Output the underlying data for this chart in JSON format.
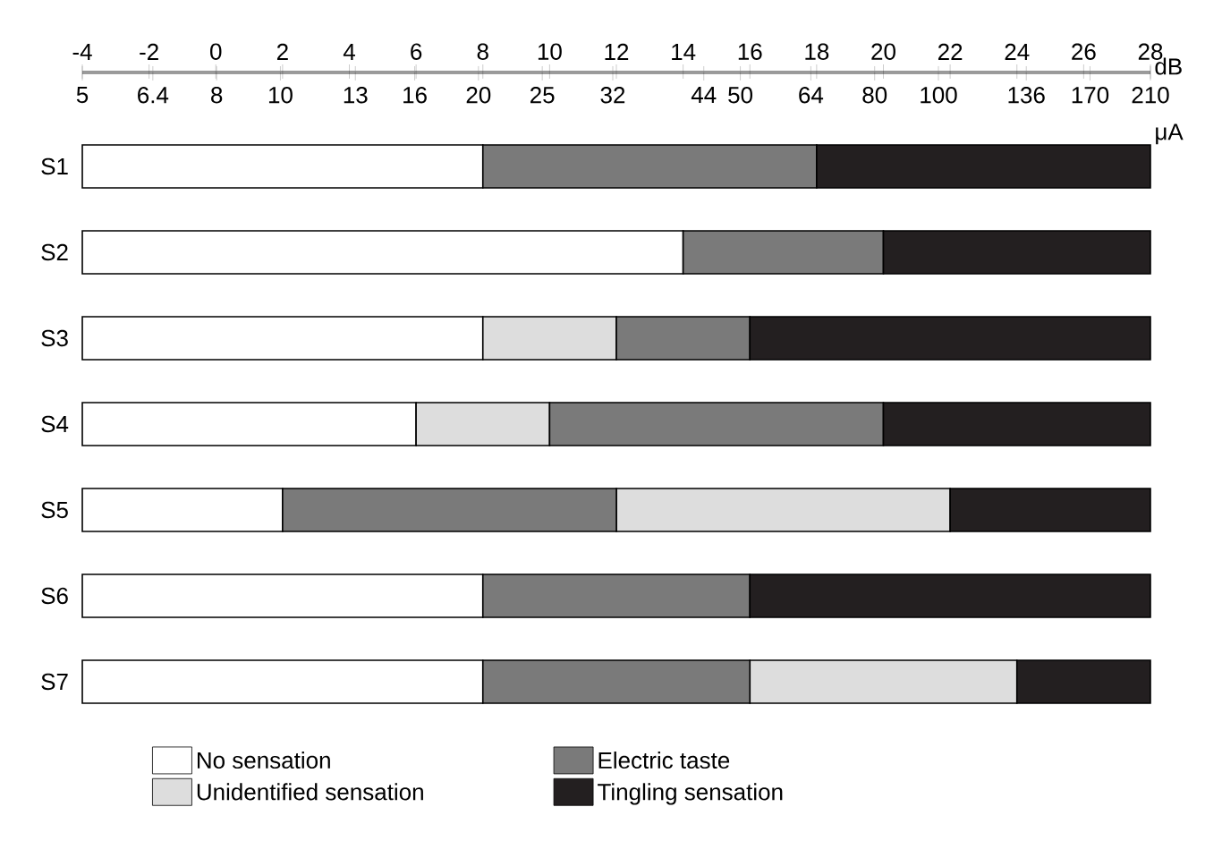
{
  "chart_data": {
    "type": "bar",
    "orientation": "horizontal",
    "legend": "bottom",
    "categories": [
      "S1",
      "S2",
      "S3",
      "S4",
      "S5",
      "S6",
      "S7"
    ],
    "xlabel": "dB",
    "x2label": "μA",
    "xlim": [
      -4,
      28
    ],
    "xticks": [
      -4,
      -2,
      0,
      2,
      4,
      6,
      8,
      10,
      12,
      14,
      16,
      18,
      20,
      22,
      24,
      26,
      28
    ],
    "log": "x2",
    "x2lim": [
      5,
      210
    ],
    "x2ticks": [
      5,
      6.4,
      8,
      10,
      13,
      16,
      20,
      25,
      32,
      44,
      50,
      64,
      80,
      100,
      136,
      170,
      210
    ],
    "series": [
      {
        "name": "No sensation",
        "color": "#ffffff",
        "base": [
          -4,
          -4,
          -4,
          -4,
          -4,
          -4,
          -4
        ],
        "values": [
          12,
          18,
          12,
          10,
          6,
          12,
          12
        ]
      },
      {
        "name": "Unidentified sensation",
        "color": "#dddddd",
        "base": [
          null,
          null,
          8,
          6,
          12,
          null,
          16
        ],
        "values": [
          null,
          null,
          4,
          4,
          10,
          null,
          8
        ]
      },
      {
        "name": "Electric taste",
        "color": "#7a7a7a",
        "base": [
          8,
          14,
          12,
          10,
          2,
          8,
          8
        ],
        "values": [
          10,
          6,
          4,
          10,
          10,
          8,
          8
        ]
      },
      {
        "name": "Tingling sensation",
        "color": "#231f20",
        "base": [
          18,
          20,
          16,
          20,
          22,
          16,
          24
        ],
        "values": [
          10,
          8,
          12,
          8,
          6,
          12,
          4
        ]
      }
    ]
  }
}
